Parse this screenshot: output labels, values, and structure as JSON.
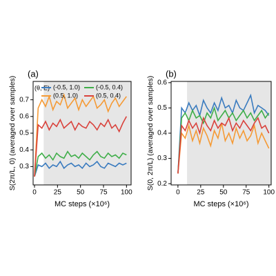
{
  "chart_data": [
    {
      "type": "line",
      "panel_label": "(a)",
      "ylabel": "S(2π/L, 0) (averaged over samples)",
      "xlabel": "MC steps (×10⁶)",
      "legend_title": "(θ, E)",
      "legend": "upper left",
      "shaded_x": [
        10,
        105
      ],
      "shade_color": "#e6e6e6",
      "xlim": [
        -1.5,
        105
      ],
      "xticks": [
        0,
        25,
        50,
        75,
        100
      ],
      "ylim": [
        0.19,
        0.81
      ],
      "yticks": [
        0.3,
        0.4,
        0.5,
        0.6,
        0.7
      ],
      "x": [
        0,
        4,
        8,
        12,
        16,
        20,
        24,
        28,
        32,
        36,
        40,
        44,
        48,
        52,
        56,
        60,
        64,
        68,
        72,
        76,
        80,
        84,
        88,
        92,
        96,
        100
      ],
      "series": [
        {
          "name": "(-0.5, 1.0)",
          "color": "#3a7bbf",
          "values": [
            0.24,
            0.31,
            0.3,
            0.32,
            0.29,
            0.31,
            0.3,
            0.33,
            0.29,
            0.31,
            0.32,
            0.3,
            0.31,
            0.29,
            0.32,
            0.3,
            0.31,
            0.33,
            0.3,
            0.29,
            0.32,
            0.31,
            0.3,
            0.32,
            0.31,
            0.32
          ]
        },
        {
          "name": "(-0.5, 0.4)",
          "color": "#3fae49",
          "values": [
            0.24,
            0.36,
            0.38,
            0.35,
            0.37,
            0.34,
            0.38,
            0.36,
            0.35,
            0.39,
            0.36,
            0.37,
            0.35,
            0.38,
            0.36,
            0.34,
            0.37,
            0.39,
            0.36,
            0.35,
            0.38,
            0.36,
            0.37,
            0.35,
            0.38,
            0.37
          ]
        },
        {
          "name": "(0.5, 1.0)",
          "color": "#f59a35",
          "values": [
            0.24,
            0.65,
            0.7,
            0.66,
            0.72,
            0.64,
            0.69,
            0.67,
            0.73,
            0.65,
            0.68,
            0.71,
            0.64,
            0.7,
            0.66,
            0.69,
            0.72,
            0.65,
            0.67,
            0.7,
            0.63,
            0.68,
            0.71,
            0.66,
            0.69,
            0.72
          ]
        },
        {
          "name": "(0.5, 0.4)",
          "color": "#d9413b",
          "values": [
            0.24,
            0.55,
            0.53,
            0.57,
            0.52,
            0.56,
            0.54,
            0.58,
            0.53,
            0.55,
            0.57,
            0.52,
            0.56,
            0.54,
            0.53,
            0.57,
            0.55,
            0.52,
            0.56,
            0.54,
            0.58,
            0.53,
            0.55,
            0.51,
            0.56,
            0.6
          ]
        }
      ]
    },
    {
      "type": "line",
      "panel_label": "(b)",
      "ylabel": "S(0, 2π/L) (averaged over samples)",
      "xlabel": "MC steps (×10⁶)",
      "shaded_x": [
        10,
        102.5
      ],
      "shade_color": "#e6e6e6",
      "xlim": [
        -7.5,
        102.5
      ],
      "xticks": [
        0,
        25,
        50,
        75,
        100
      ],
      "ylim": [
        0.195,
        0.605
      ],
      "yticks": [
        0.2,
        0.3,
        0.4,
        0.5,
        0.6
      ],
      "x": [
        0,
        4,
        8,
        12,
        16,
        20,
        24,
        28,
        32,
        36,
        40,
        44,
        48,
        52,
        56,
        60,
        64,
        68,
        72,
        76,
        80,
        84,
        88,
        92,
        96,
        100
      ],
      "series": [
        {
          "color": "#3a7bbf",
          "values": [
            0.24,
            0.5,
            0.48,
            0.52,
            0.49,
            0.51,
            0.47,
            0.53,
            0.5,
            0.48,
            0.52,
            0.49,
            0.54,
            0.5,
            0.51,
            0.48,
            0.53,
            0.5,
            0.49,
            0.52,
            0.55,
            0.48,
            0.51,
            0.5,
            0.49,
            0.47
          ]
        },
        {
          "color": "#3fae49",
          "values": [
            0.24,
            0.46,
            0.48,
            0.45,
            0.49,
            0.46,
            0.47,
            0.44,
            0.48,
            0.46,
            0.5,
            0.45,
            0.47,
            0.49,
            0.46,
            0.48,
            0.45,
            0.47,
            0.49,
            0.46,
            0.48,
            0.45,
            0.47,
            0.49,
            0.46,
            0.48
          ]
        },
        {
          "color": "#f59a35",
          "values": [
            0.24,
            0.4,
            0.38,
            0.43,
            0.37,
            0.41,
            0.36,
            0.42,
            0.39,
            0.35,
            0.41,
            0.38,
            0.44,
            0.37,
            0.4,
            0.36,
            0.42,
            0.38,
            0.41,
            0.37,
            0.39,
            0.43,
            0.36,
            0.4,
            0.37,
            0.34
          ]
        },
        {
          "color": "#d9413b",
          "values": [
            0.24,
            0.43,
            0.41,
            0.45,
            0.42,
            0.44,
            0.4,
            0.46,
            0.43,
            0.41,
            0.45,
            0.42,
            0.44,
            0.43,
            0.46,
            0.41,
            0.44,
            0.42,
            0.45,
            0.43,
            0.41,
            0.44,
            0.46,
            0.42,
            0.43,
            0.4
          ]
        }
      ]
    }
  ]
}
